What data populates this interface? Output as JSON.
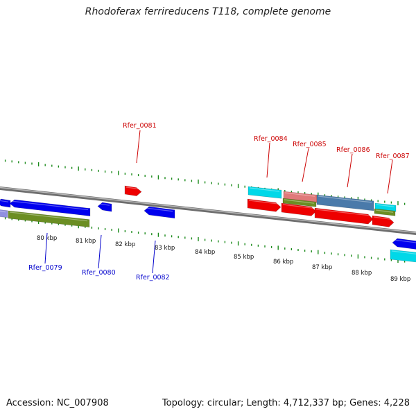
{
  "title": "Rhodoferax ferrireducens T118, complete genome",
  "footer": {
    "accession": "Accession: NC_007908",
    "summary": "Topology: circular; Length: 4,712,337 bp; Genes: 4,228"
  },
  "colors": {
    "backbone": "#8a8a8a",
    "tick": "#1a8a1a",
    "label_top": "#cc0000",
    "label_bottom": "#0000cc",
    "blue": "#0000ee",
    "red": "#ee0000",
    "cyan": "#00d8e8",
    "olive": "#6b8e23",
    "steel": "#4a7aaa",
    "pink": "#e07a7a",
    "lavender": "#9090e0"
  },
  "scale_labels": [
    {
      "kbp": 80,
      "text": "80 kbp"
    },
    {
      "kbp": 81,
      "text": "81 kbp"
    },
    {
      "kbp": 82,
      "text": "82 kbp"
    },
    {
      "kbp": 83,
      "text": "83 kbp"
    },
    {
      "kbp": 84,
      "text": "84 kbp"
    },
    {
      "kbp": 85,
      "text": "85 kbp"
    },
    {
      "kbp": 86,
      "text": "86 kbp"
    },
    {
      "kbp": 87,
      "text": "87 kbp"
    },
    {
      "kbp": 88,
      "text": "88 kbp"
    },
    {
      "kbp": 89,
      "text": "89 kbp"
    }
  ],
  "gene_labels_top": [
    "Rfer_0081",
    "Rfer_0084",
    "Rfer_0085",
    "Rfer_0086",
    "Rfer_0087"
  ],
  "gene_labels_bottom": [
    "Rfer_0079",
    "Rfer_0080",
    "Rfer_0082"
  ],
  "features": [
    {
      "name": "lavender-feature",
      "color": "lavender"
    },
    {
      "name": "blue-feature-left",
      "color": "blue",
      "strand": "reverse"
    },
    {
      "name": "rfer-0079-feature",
      "color": "blue",
      "strand": "reverse"
    },
    {
      "name": "rfer-0079-cds-feature",
      "color": "olive"
    },
    {
      "name": "rfer-0080-feature",
      "color": "blue",
      "strand": "reverse"
    },
    {
      "name": "rfer-0081-feature",
      "color": "red",
      "strand": "forward"
    },
    {
      "name": "rfer-0082-feature",
      "color": "blue",
      "strand": "reverse"
    },
    {
      "name": "rfer-0084-feature",
      "color": "cyan"
    },
    {
      "name": "rfer-0084-gene-feature",
      "color": "red",
      "strand": "forward"
    },
    {
      "name": "rfer-0085-feature",
      "color": "pink"
    },
    {
      "name": "rfer-0085-cds-feature",
      "color": "olive"
    },
    {
      "name": "rfer-0085-gene-feature",
      "color": "red",
      "strand": "forward"
    },
    {
      "name": "rfer-0086-feature",
      "color": "steel"
    },
    {
      "name": "rfer-0086-gene-feature",
      "color": "red",
      "strand": "forward"
    },
    {
      "name": "rfer-0087-feature",
      "color": "cyan"
    },
    {
      "name": "rfer-0087-cds-feature",
      "color": "olive"
    },
    {
      "name": "rfer-0087-gene-feature",
      "color": "red",
      "strand": "forward"
    },
    {
      "name": "blue-feature-right",
      "color": "blue",
      "strand": "reverse"
    },
    {
      "name": "cyan-feature-right",
      "color": "cyan"
    }
  ]
}
